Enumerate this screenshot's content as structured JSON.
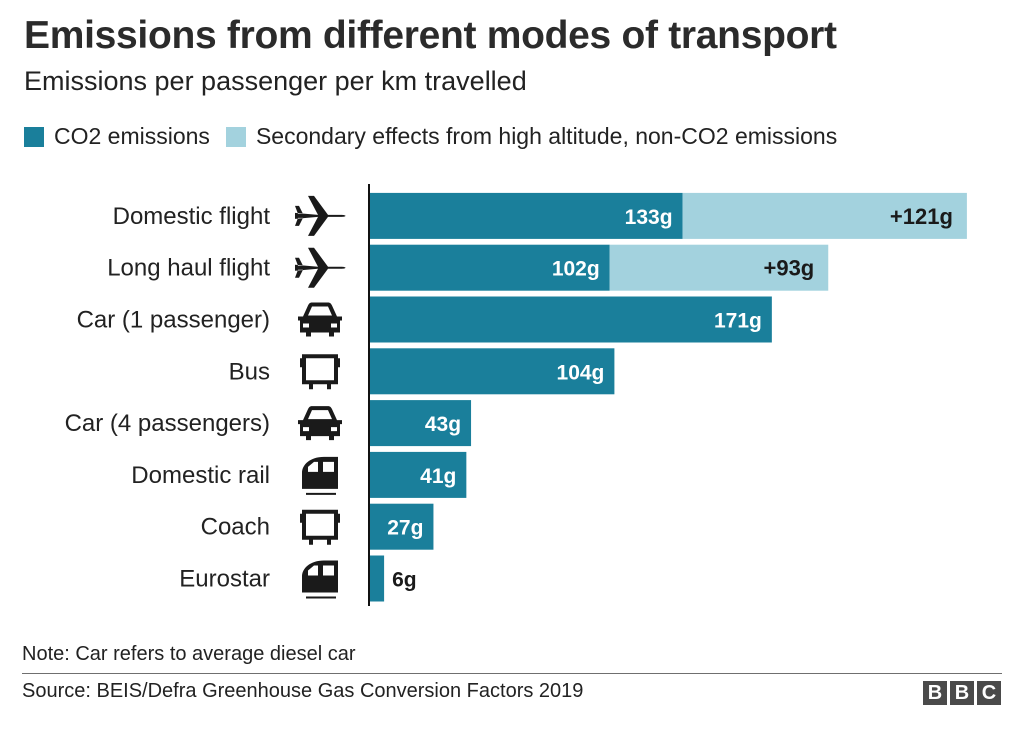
{
  "title": "Emissions from different modes of transport",
  "subtitle": "Emissions per passenger per km travelled",
  "note": "Note: Car refers to average diesel car",
  "source": "Source: BEIS/Defra Greenhouse Gas Conversion Factors 2019",
  "logo": [
    "B",
    "B",
    "C"
  ],
  "colors": {
    "co2": "#1a7f9b",
    "secondary": "#a3d2de",
    "axis": "#111111"
  },
  "chart_data": {
    "type": "bar",
    "orientation": "horizontal",
    "stacked": true,
    "unit": "g",
    "legend_position": "top",
    "categories": [
      "Domestic flight",
      "Long haul flight",
      "Car (1 passenger)",
      "Bus",
      "Car (4 passengers)",
      "Domestic rail",
      "Coach",
      "Eurostar"
    ],
    "icons": [
      "plane-icon",
      "plane-icon",
      "car-icon",
      "bus-icon",
      "car-icon",
      "train-icon",
      "bus-icon",
      "train-icon"
    ],
    "series": [
      {
        "name": "CO2 emissions",
        "values": [
          133,
          102,
          171,
          104,
          43,
          41,
          27,
          6
        ],
        "labels": [
          "133g",
          "102g",
          "171g",
          "104g",
          "43g",
          "41g",
          "27g",
          "6g"
        ]
      },
      {
        "name": "Secondary effects from high altitude, non-CO2 emissions",
        "values": [
          121,
          93,
          0,
          0,
          0,
          0,
          0,
          0
        ],
        "labels": [
          "+121g",
          "+93g",
          "",
          "",
          "",
          "",
          "",
          ""
        ]
      }
    ],
    "xlim": [
      0,
      254
    ],
    "grid": false
  }
}
